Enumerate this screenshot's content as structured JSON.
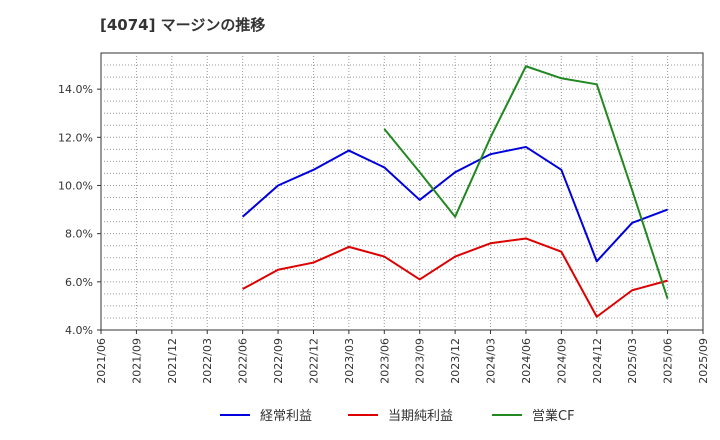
{
  "chart_data": {
    "type": "line",
    "title": "[4074]  マージンの推移",
    "xlabel": "",
    "ylabel": "",
    "x": [
      "2021/06",
      "2021/09",
      "2021/12",
      "2022/03",
      "2022/06",
      "2022/09",
      "2022/12",
      "2023/03",
      "2023/06",
      "2023/09",
      "2023/12",
      "2024/03",
      "2024/06",
      "2024/09",
      "2024/12",
      "2025/03",
      "2025/06",
      "2025/09"
    ],
    "ylim": [
      4.0,
      15.5
    ],
    "yticks": [
      4.0,
      6.0,
      8.0,
      10.0,
      12.0,
      14.0
    ],
    "ytick_labels": [
      "4.0%",
      "6.0%",
      "8.0%",
      "10.0%",
      "12.0%",
      "14.0%"
    ],
    "grid": true,
    "legend_position": "bottom",
    "series": [
      {
        "name": "経常利益",
        "color": "#0000dd",
        "values": [
          null,
          null,
          null,
          null,
          8.7,
          10.0,
          10.65,
          11.45,
          10.75,
          9.4,
          10.55,
          11.3,
          11.6,
          10.65,
          6.85,
          8.45,
          9.0,
          null
        ]
      },
      {
        "name": "当期純利益",
        "color": "#dd0000",
        "values": [
          null,
          null,
          null,
          null,
          5.7,
          6.5,
          6.8,
          7.45,
          7.05,
          6.1,
          7.05,
          7.6,
          7.8,
          7.25,
          4.55,
          5.65,
          6.05,
          null
        ]
      },
      {
        "name": "営業CF",
        "color": "#228822",
        "values": [
          null,
          null,
          null,
          null,
          null,
          null,
          null,
          null,
          12.35,
          10.55,
          8.7,
          12.0,
          14.95,
          14.45,
          14.2,
          9.8,
          5.3,
          null
        ]
      }
    ]
  }
}
